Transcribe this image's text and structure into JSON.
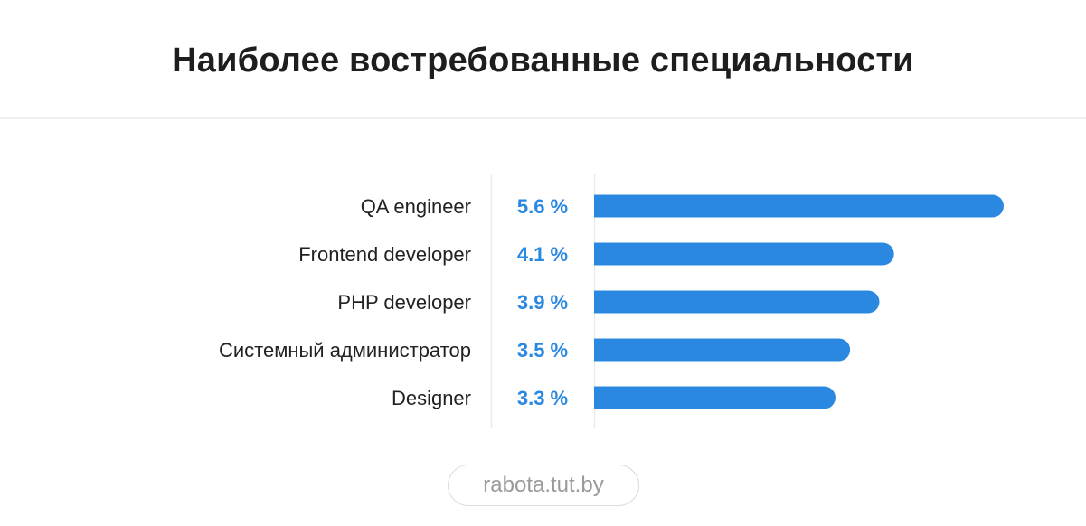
{
  "title": "Наиболее востребованные специальности",
  "source": "rabota.tut.by",
  "colors": {
    "bar": "#2A88E0",
    "value_text": "#2A88E0",
    "grid_line": "#EBEBEB"
  },
  "chart_data": {
    "type": "bar",
    "orientation": "horizontal",
    "title": "Наиболее востребованные специальности",
    "categories": [
      "QA engineer",
      "Frontend developer",
      "PHP developer",
      "Системный администратор",
      "Designer"
    ],
    "values": [
      5.6,
      4.1,
      3.9,
      3.5,
      3.3
    ],
    "value_labels": [
      "5.6 %",
      "4.1 %",
      "3.9 %",
      "3.5 %",
      "3.3 %"
    ],
    "unit": "%",
    "xlabel": "",
    "ylabel": ""
  }
}
